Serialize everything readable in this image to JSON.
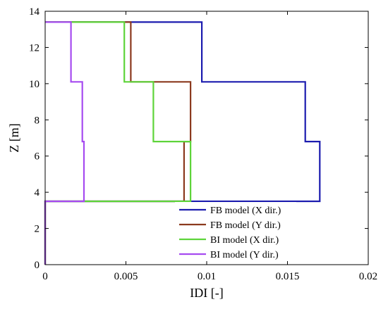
{
  "chart_data": {
    "type": "line",
    "xlabel": "IDI [-]",
    "ylabel": "Z [m]",
    "xlim": [
      0,
      0.02
    ],
    "ylim": [
      0,
      14
    ],
    "xticks": [
      0,
      0.005,
      0.01,
      0.015,
      0.02
    ],
    "xtick_labels": [
      "0",
      "0.005",
      "0.01",
      "0.015",
      "0.02"
    ],
    "yticks": [
      0,
      2,
      4,
      6,
      8,
      10,
      12,
      14
    ],
    "ytick_labels": [
      "0",
      "2",
      "4",
      "6",
      "8",
      "10",
      "12",
      "14"
    ],
    "grid": false,
    "legend_position": "bottom-right",
    "series": [
      {
        "name": "FB model (X dir.)",
        "color": "#1c1caf",
        "x": [
          0,
          0,
          0.017,
          0.017,
          0.0161,
          0.0161,
          0.0097,
          0.0097,
          0
        ],
        "y": [
          0,
          3.5,
          3.5,
          6.8,
          6.8,
          10.1,
          10.1,
          13.4,
          13.4
        ]
      },
      {
        "name": "FB model (Y dir.)",
        "color": "#8b3a1e",
        "x": [
          0,
          0,
          0.0086,
          0.0086,
          0.009,
          0.009,
          0.0053,
          0.0053,
          0
        ],
        "y": [
          0,
          3.5,
          3.5,
          6.8,
          6.8,
          10.1,
          10.1,
          13.4,
          13.4
        ]
      },
      {
        "name": "BI model (X dir.)",
        "color": "#5ed43a",
        "x": [
          0,
          0,
          0.009,
          0.009,
          0.0067,
          0.0067,
          0.0049,
          0.0049,
          0
        ],
        "y": [
          0,
          3.5,
          3.5,
          6.8,
          6.8,
          10.1,
          10.1,
          13.4,
          13.4
        ]
      },
      {
        "name": "BI model (Y dir.)",
        "color": "#a64bf0",
        "x": [
          0,
          0,
          0.0024,
          0.0024,
          0.0023,
          0.0023,
          0.0016,
          0.0016,
          0
        ],
        "y": [
          0,
          3.5,
          3.5,
          6.8,
          6.8,
          10.1,
          10.1,
          13.4,
          13.4
        ]
      }
    ]
  }
}
